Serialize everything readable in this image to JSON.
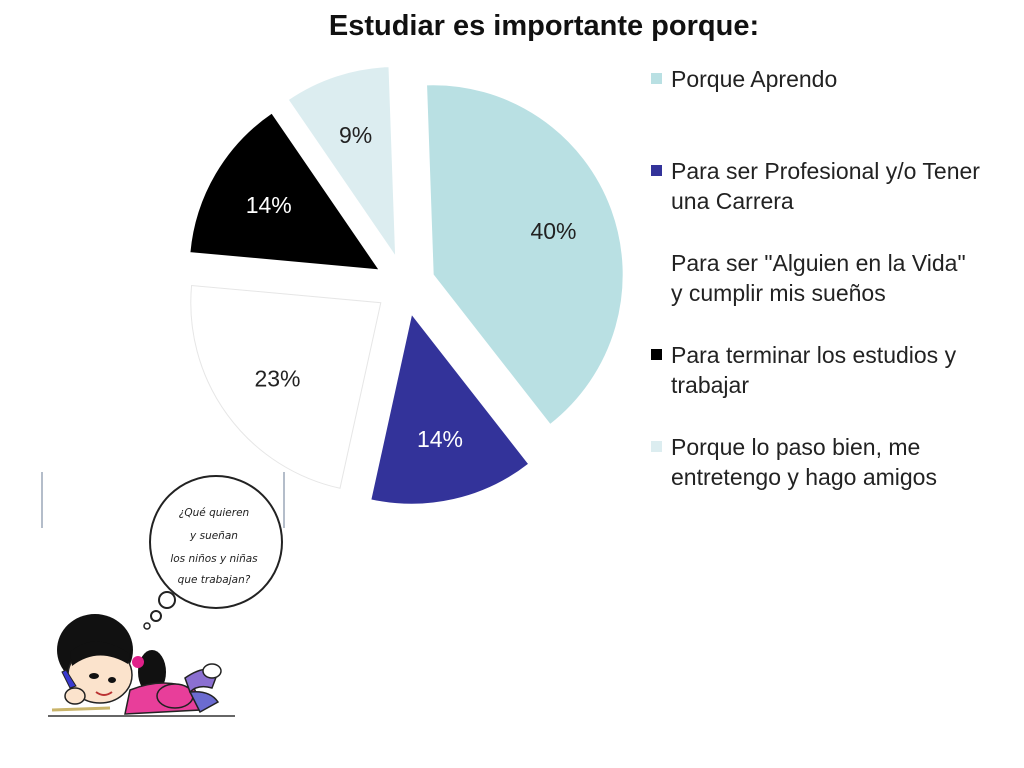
{
  "chart_data": {
    "type": "pie",
    "title": "Estudiar es importante porque:",
    "slices": [
      {
        "label": "Porque Aprendo",
        "value": 40,
        "display": "40%",
        "color": "#b9e0e3",
        "label_color": "#222222"
      },
      {
        "label": "Para ser Profesional y/o Tener una Carrera",
        "value": 14,
        "display": "14%",
        "color": "#33339a",
        "label_color": "#ffffff"
      },
      {
        "label": "Para ser \"Alguien en la Vida\" y cumplir mis sueños",
        "value": 23,
        "display": "23%",
        "color": "#ffffff",
        "label_color": "#222222"
      },
      {
        "label": "Para terminar los estudios y trabajar",
        "value": 14,
        "display": "14%",
        "color": "#000000",
        "label_color": "#ffffff"
      },
      {
        "label": "Porque lo paso bien, me entretengo y hago amigos",
        "value": 9,
        "display": "9%",
        "color": "#dcedf0",
        "label_color": "#222222"
      }
    ],
    "exploded": true,
    "legend_position": "right"
  },
  "illustration": {
    "bubble_lines": [
      "¿Qué quieren",
      "y sueñan",
      "los niños y niñas",
      "que trabajan?"
    ]
  }
}
